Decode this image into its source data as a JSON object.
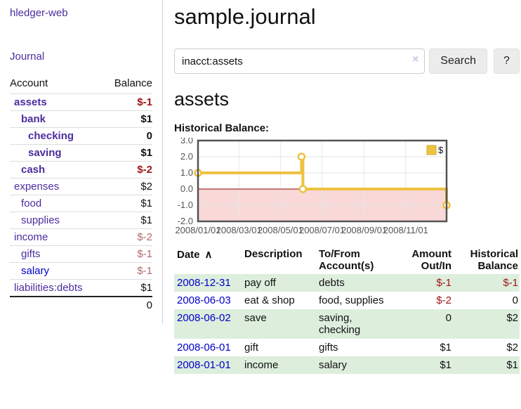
{
  "colors": {
    "purple": "#4b2d9e",
    "blue": "#0000cc",
    "row-green": "#ddeedd",
    "neg-strong": "#9e1414",
    "neg-muted": "#b36a6a",
    "gold": "#edc240",
    "pink": "#f9d8d8",
    "zero-line": "#8b0000"
  },
  "app": {
    "title": "hledger-web"
  },
  "sidebar": {
    "journal_label": "Journal",
    "table": {
      "account_header": "Account",
      "balance_header": "Balance",
      "rows": [
        {
          "name": "assets",
          "balance": "$-1",
          "bold": true,
          "unvisited": false
        },
        {
          "name": "bank",
          "balance": "$1",
          "bold": true,
          "unvisited": false
        },
        {
          "name": "checking",
          "balance": "0",
          "bold": true,
          "unvisited": false
        },
        {
          "name": "saving",
          "balance": "$1",
          "bold": true,
          "unvisited": false
        },
        {
          "name": "cash",
          "balance": "$-2",
          "bold": true,
          "unvisited": false
        },
        {
          "name": "expenses",
          "balance": "$2",
          "bold": false,
          "unvisited": false
        },
        {
          "name": "food",
          "balance": "$1",
          "bold": false,
          "unvisited": false
        },
        {
          "name": "supplies",
          "balance": "$1",
          "bold": false,
          "unvisited": false
        },
        {
          "name": "income",
          "balance": "$-2",
          "bold": false,
          "unvisited": false
        },
        {
          "name": "gifts",
          "balance": "$-1",
          "bold": false,
          "unvisited": false
        },
        {
          "name": "salary",
          "balance": "$-1",
          "bold": false,
          "unvisited": true
        },
        {
          "name": "liabilities:debts",
          "balance": "$1",
          "bold": false,
          "unvisited": false
        }
      ],
      "total": "0"
    }
  },
  "header": {
    "title": "sample.journal"
  },
  "search": {
    "value": "inacct:assets",
    "clear_icon": "×",
    "button_label": "Search",
    "help_label": "?"
  },
  "main": {
    "account_title": "assets",
    "chart_label": "Historical Balance:"
  },
  "chart_data": {
    "type": "line",
    "step": true,
    "title": "Historical Balance",
    "legend": "$",
    "legend_position": "top-right",
    "grid": true,
    "ylim": [
      -2.0,
      3.0
    ],
    "yticks": [
      3.0,
      2.0,
      1.0,
      0.0,
      -1.0,
      -2.0
    ],
    "xticks": [
      "2008/01/01",
      "2008/03/01",
      "2008/05/01",
      "2008/07/01",
      "2008/09/01",
      "2008/11/01"
    ],
    "xrange": [
      "2008-01-01",
      "2008-12-31"
    ],
    "negative_fill": "#f9d8d8",
    "zero_line_color": "#8b0000",
    "series": [
      {
        "name": "$",
        "color": "#edc240",
        "points": [
          [
            "2008-01-01",
            1
          ],
          [
            "2008-06-01",
            2
          ],
          [
            "2008-06-03",
            0
          ],
          [
            "2008-12-31",
            -1
          ]
        ]
      }
    ]
  },
  "register": {
    "headers": {
      "date": "Date",
      "sort_icon": "∧",
      "description": "Description",
      "accounts": "To/From Account(s)",
      "amount": "Amount Out/In",
      "balance": "Historical Balance"
    },
    "rows": [
      {
        "date": "2008-12-31",
        "description": "pay off",
        "accounts": "debts",
        "amount": "$-1",
        "balance": "$-1"
      },
      {
        "date": "2008-06-03",
        "description": "eat & shop",
        "accounts": "food, supplies",
        "amount": "$-2",
        "balance": "0"
      },
      {
        "date": "2008-06-02",
        "description": "save",
        "accounts": "saving, checking",
        "amount": "0",
        "balance": "$2"
      },
      {
        "date": "2008-06-01",
        "description": "gift",
        "accounts": "gifts",
        "amount": "$1",
        "balance": "$2"
      },
      {
        "date": "2008-01-01",
        "description": "income",
        "accounts": "salary",
        "amount": "$1",
        "balance": "$1"
      }
    ]
  }
}
